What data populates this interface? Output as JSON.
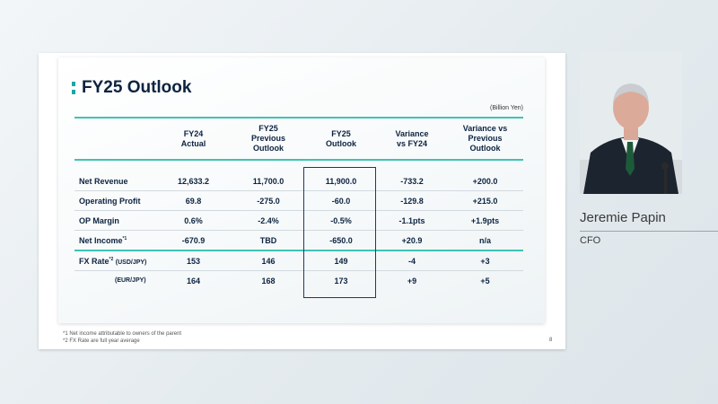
{
  "slide": {
    "title": "FY25 Outlook",
    "units": "(Billion Yen)",
    "headers": [
      "FY24\nActual",
      "FY25\nPrevious\nOutlook",
      "FY25\nOutlook",
      "Variance\nvs FY24",
      "Variance vs\nPrevious\nOutlook"
    ],
    "rows": {
      "net_revenue": {
        "label": "Net Revenue",
        "values": [
          "12,633.2",
          "11,700.0",
          "11,900.0",
          "-733.2",
          "+200.0"
        ]
      },
      "operating_profit": {
        "label": "Operating Profit",
        "values": [
          "69.8",
          "-275.0",
          "-60.0",
          "-129.8",
          "+215.0"
        ]
      },
      "op_margin": {
        "label": "OP Margin",
        "values": [
          "0.6%",
          "-2.4%",
          "-0.5%",
          "-1.1pts",
          "+1.9pts"
        ]
      },
      "net_income": {
        "label": "Net Income",
        "sup": "*1",
        "values": [
          "-670.9",
          "TBD",
          "-650.0",
          "+20.9",
          "n/a"
        ]
      },
      "fx_usd": {
        "label": "FX Rate",
        "sup": "*2",
        "paren": "(USD/JPY)",
        "values": [
          "153",
          "146",
          "149",
          "-4",
          "+3"
        ]
      },
      "fx_eur": {
        "label": "(EUR/JPY)",
        "values": [
          "164",
          "168",
          "173",
          "+9",
          "+5"
        ]
      }
    },
    "footnotes": [
      "*1 Net income attributable to owners of the parent",
      "*2 FX Rate are full year average"
    ],
    "page_number": "8"
  },
  "speaker": {
    "name": "Jeremie Papin",
    "role": "CFO"
  },
  "colors": {
    "navy": "#0c2340",
    "teal": "#3ec3b4",
    "box": "#1e3a5f"
  }
}
